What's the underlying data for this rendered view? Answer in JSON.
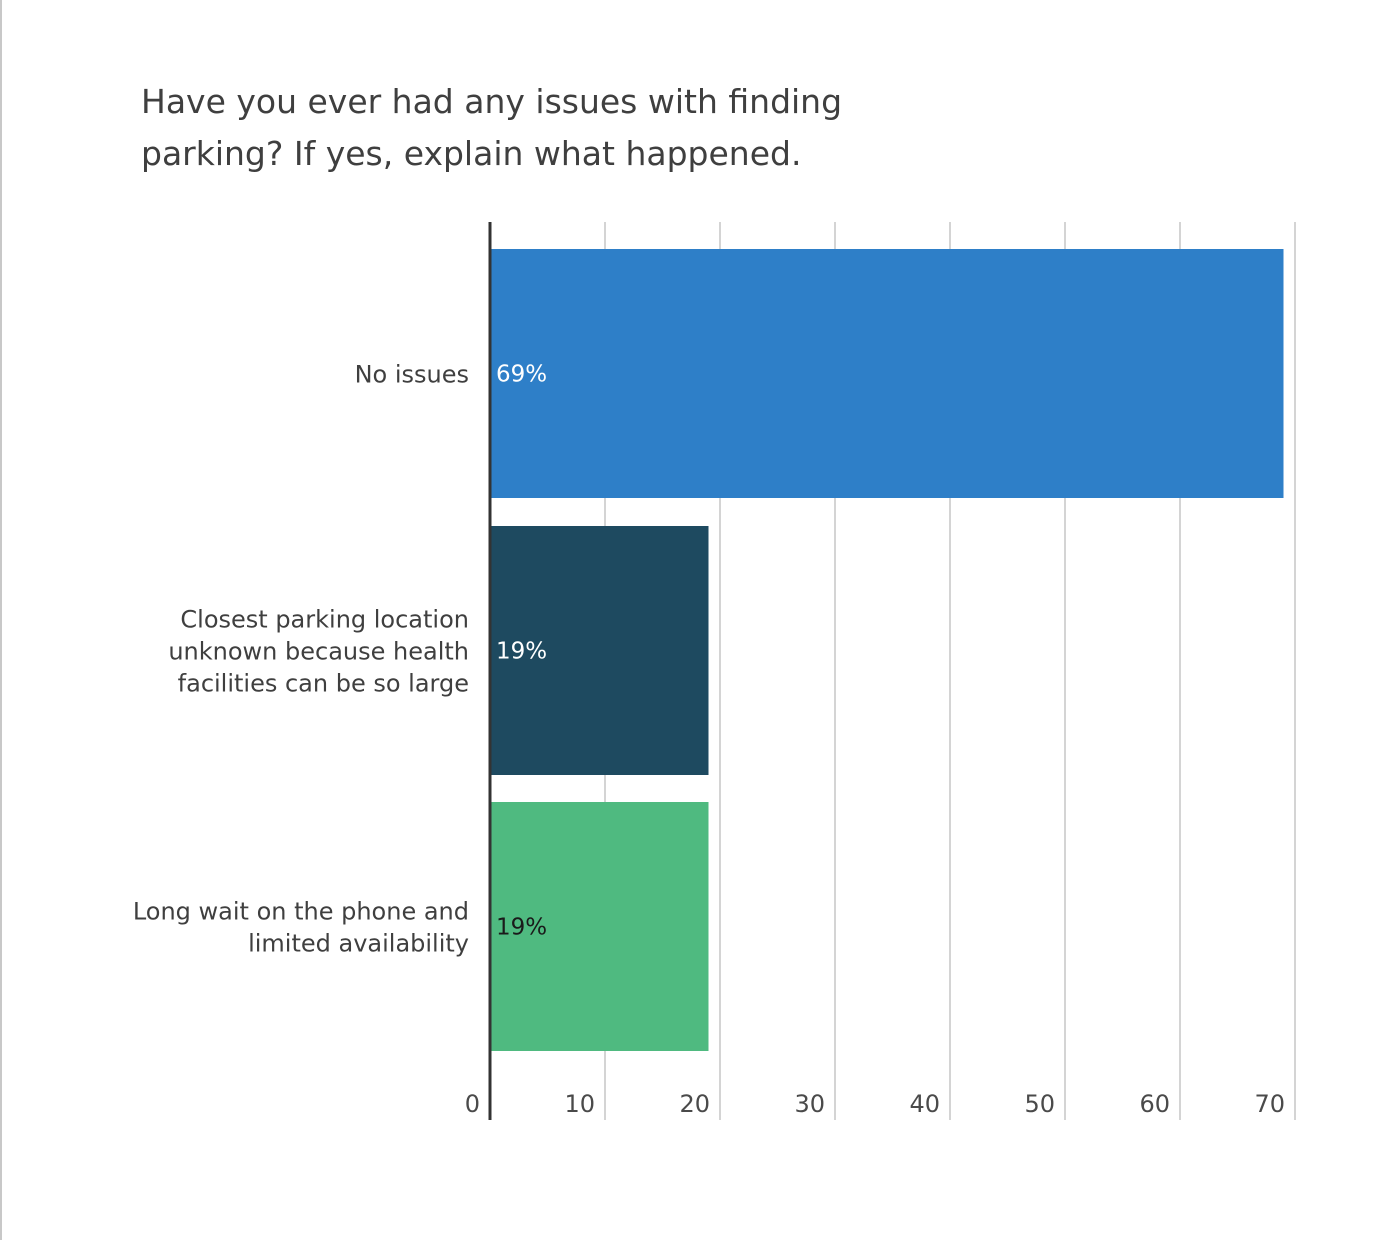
{
  "chart_data": {
    "type": "bar",
    "orientation": "horizontal",
    "title": "Have you ever had any issues with finding parking? If yes, explain what happened.",
    "title_lines": [
      "Have you ever had any issues with finding",
      "parking? If yes, explain what happened."
    ],
    "categories": [
      "No issues",
      "Closest parking location unknown because health facilities can be so large",
      "Long wait on the phone and limited availability"
    ],
    "category_lines": [
      [
        "No issues"
      ],
      [
        "Closest parking location",
        "unknown because health",
        "facilities can be so large"
      ],
      [
        "Long wait on the phone and",
        "limited availability"
      ]
    ],
    "values": [
      69,
      19,
      19
    ],
    "data_labels": [
      "69%",
      "19%",
      "19%"
    ],
    "colors": [
      "#2e7fc8",
      "#1e4a60",
      "#4fba80"
    ],
    "label_colors": [
      "#ffffff",
      "#ffffff",
      "#1a1a1a"
    ],
    "xlim": [
      0,
      70
    ],
    "x_ticks": [
      0,
      10,
      20,
      30,
      40,
      50,
      60,
      70
    ],
    "grid": "vertical",
    "legend": "none"
  }
}
